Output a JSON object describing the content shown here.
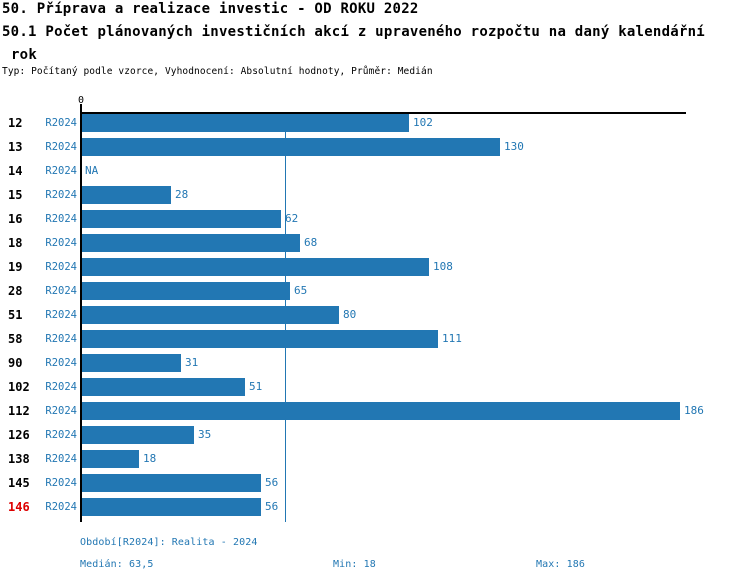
{
  "header": {
    "title_line1": "50. Příprava a realizace investic - OD ROKU 2022",
    "title_line2": "50.1 Počet plánovaných investičních akcí z upraveného rozpočtu na daný kalendářní",
    "title_line3": "rok",
    "subtitle": "Typ: Počítaný podle vzorce, Vyhodnocení: Absolutní hodnoty, Průměr: Medián"
  },
  "chart_data": {
    "type": "bar",
    "orientation": "horizontal",
    "title": "50.1 Počet plánovaných investičních akcí z upraveného rozpočtu na daný kalendářní rok",
    "axis": {
      "origin_label": "0",
      "xmin": 0,
      "xmax": 186,
      "grid": false
    },
    "median_value": 63.5,
    "min_value": 18,
    "max_value": 186,
    "na_text": "NA",
    "rows": [
      {
        "id": "12",
        "period": "R2024",
        "value": 102
      },
      {
        "id": "13",
        "period": "R2024",
        "value": 130
      },
      {
        "id": "14",
        "period": "R2024",
        "value": null
      },
      {
        "id": "15",
        "period": "R2024",
        "value": 28
      },
      {
        "id": "16",
        "period": "R2024",
        "value": 62
      },
      {
        "id": "18",
        "period": "R2024",
        "value": 68
      },
      {
        "id": "19",
        "period": "R2024",
        "value": 108
      },
      {
        "id": "28",
        "period": "R2024",
        "value": 65
      },
      {
        "id": "51",
        "period": "R2024",
        "value": 80
      },
      {
        "id": "58",
        "period": "R2024",
        "value": 111
      },
      {
        "id": "90",
        "period": "R2024",
        "value": 31
      },
      {
        "id": "102",
        "period": "R2024",
        "value": 51
      },
      {
        "id": "112",
        "period": "R2024",
        "value": 186
      },
      {
        "id": "126",
        "period": "R2024",
        "value": 35
      },
      {
        "id": "138",
        "period": "R2024",
        "value": 18
      },
      {
        "id": "145",
        "period": "R2024",
        "value": 56
      },
      {
        "id": "146",
        "period": "R2024",
        "value": 56,
        "highlight": true
      }
    ],
    "colors": {
      "bar": "#2277b3",
      "text_blue": "#2277b3",
      "highlight_red": "#dd0000",
      "axis_black": "#000000"
    }
  },
  "footer": {
    "period_line": "Období[R2024]: Realita - 2024",
    "median_label": "Medián: 63,5",
    "min_label": "Min: 18",
    "max_label": "Max: 186"
  }
}
